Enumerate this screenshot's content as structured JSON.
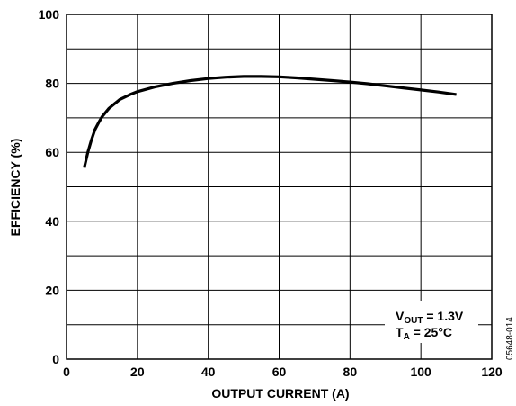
{
  "chart_data": {
    "type": "line",
    "xlabel": "OUTPUT CURRENT (A)",
    "ylabel": "EFFICIENCY (%)",
    "xlim": [
      0,
      120
    ],
    "ylim": [
      0,
      100
    ],
    "xticks": [
      0,
      20,
      40,
      60,
      80,
      100,
      120
    ],
    "yticks": [
      0,
      20,
      40,
      60,
      80,
      100
    ],
    "xgrid": [
      0,
      20,
      40,
      60,
      80,
      100,
      120
    ],
    "ygrid": [
      0,
      10,
      20,
      30,
      40,
      50,
      60,
      70,
      80,
      90,
      100
    ],
    "grid": true,
    "series": [
      {
        "x": [
          5,
          6,
          7,
          8,
          9,
          10,
          12,
          15,
          18,
          20,
          25,
          30,
          35,
          40,
          45,
          50,
          55,
          60,
          65,
          70,
          75,
          80,
          85,
          90,
          95,
          100,
          105,
          110
        ],
        "y": [
          55.5,
          60,
          63.5,
          66.5,
          68.5,
          70.3,
          72.8,
          75.3,
          76.8,
          77.6,
          79,
          80,
          80.8,
          81.4,
          81.8,
          82,
          82,
          81.9,
          81.6,
          81.2,
          80.8,
          80.4,
          79.9,
          79.3,
          78.7,
          78.1,
          77.5,
          76.8
        ]
      }
    ],
    "annotations": [
      {
        "main": "V",
        "sub": "OUT",
        "rest": " = 1.3V"
      },
      {
        "main": "T",
        "sub": "A",
        "rest": " = 25°C"
      }
    ],
    "figure_id": "05648-014"
  },
  "colors": {
    "line": "#000000",
    "grid": "#000000",
    "background": "#ffffff"
  }
}
